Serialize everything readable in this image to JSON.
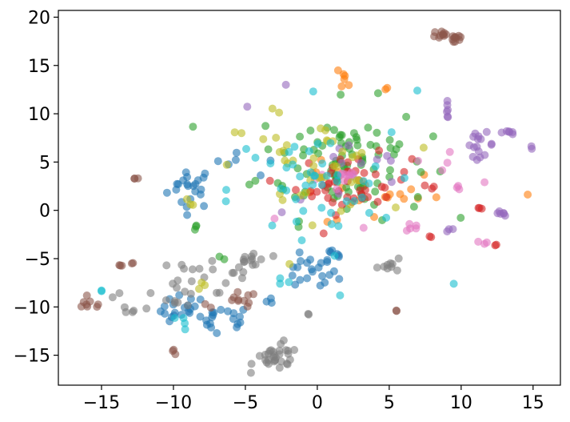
{
  "chart_data": {
    "type": "scatter",
    "title": "",
    "xlabel": "",
    "ylabel": "",
    "xlim": [
      -18,
      16.9
    ],
    "ylim": [
      -18.1,
      20.7
    ],
    "xticks": [
      -15,
      -10,
      -5,
      0,
      5,
      10,
      15
    ],
    "yticks": [
      -15,
      -10,
      -5,
      0,
      5,
      10,
      15,
      20
    ],
    "xtick_labels": [
      "−15",
      "−10",
      "−5",
      "0",
      "5",
      "10",
      "15"
    ],
    "ytick_labels": [
      "−15",
      "−10",
      "−5",
      "0",
      "5",
      "10",
      "15",
      "20"
    ],
    "grid": false,
    "legend": false,
    "marker_opacity": 0.6,
    "series": [
      {
        "color": "#1f77b4",
        "clusters": [
          {
            "cx": -8.8,
            "cy": 2.4,
            "sx": 0.8,
            "sy": 1.1,
            "n": 22
          },
          {
            "cx": -9.3,
            "cy": -10.4,
            "sx": 0.8,
            "sy": 0.8,
            "n": 20
          },
          {
            "cx": -7.2,
            "cy": -11.3,
            "sx": 0.3,
            "sy": 0.7,
            "n": 10
          },
          {
            "cx": -5.6,
            "cy": -11.2,
            "sx": 0.3,
            "sy": 0.6,
            "n": 8
          },
          {
            "cx": -0.6,
            "cy": -6.6,
            "sx": 1.0,
            "sy": 0.9,
            "n": 20
          },
          {
            "cx": 0.9,
            "cy": -4.6,
            "sx": 0.5,
            "sy": 0.6,
            "n": 8
          },
          {
            "cx": -5.5,
            "cy": 4.3,
            "sx": 1.5,
            "sy": 1.0,
            "n": 6
          },
          {
            "cx": -3.0,
            "cy": -9.5,
            "sx": 0.3,
            "sy": 0.2,
            "n": 3
          }
        ]
      },
      {
        "color": "#ff7f0e",
        "clusters": [
          {
            "cx": 1.8,
            "cy": 13.4,
            "sx": 0.3,
            "sy": 0.5,
            "n": 6
          },
          {
            "cx": 4.8,
            "cy": 12.6,
            "sx": 0.05,
            "sy": 0.1,
            "n": 2
          },
          {
            "cx": 14.6,
            "cy": 1.7,
            "sx": 0.05,
            "sy": 0.05,
            "n": 1
          },
          {
            "cx": 4.5,
            "cy": 1.8,
            "sx": 2.0,
            "sy": 2.0,
            "n": 18
          },
          {
            "cx": -2.0,
            "cy": 3.0,
            "sx": 1.5,
            "sy": 1.5,
            "n": 3
          }
        ]
      },
      {
        "color": "#2ca02c",
        "clusters": [
          {
            "cx": 1.8,
            "cy": 5.2,
            "sx": 3.0,
            "sy": 3.0,
            "n": 95
          },
          {
            "cx": -7.3,
            "cy": -5.0,
            "sx": 0.3,
            "sy": 0.2,
            "n": 2
          },
          {
            "cx": -8.5,
            "cy": -2.0,
            "sx": 0.4,
            "sy": 0.5,
            "n": 3
          }
        ]
      },
      {
        "color": "#d62728",
        "clusters": [
          {
            "cx": 2.5,
            "cy": 2.7,
            "sx": 2.0,
            "sy": 1.5,
            "n": 45
          },
          {
            "cx": 11.3,
            "cy": 0.2,
            "sx": 0.1,
            "sy": 0.1,
            "n": 3
          },
          {
            "cx": 12.4,
            "cy": -3.6,
            "sx": 0.05,
            "sy": 0.1,
            "n": 2
          },
          {
            "cx": 7.9,
            "cy": -2.4,
            "sx": 0.2,
            "sy": 0.3,
            "n": 2
          },
          {
            "cx": 8.0,
            "cy": 2.2,
            "sx": 0.3,
            "sy": 0.3,
            "n": 3
          }
        ]
      },
      {
        "color": "#9467bd",
        "clusters": [
          {
            "cx": 11.3,
            "cy": 6.8,
            "sx": 0.5,
            "sy": 0.6,
            "n": 16
          },
          {
            "cx": 13.3,
            "cy": 8.1,
            "sx": 0.3,
            "sy": 0.15,
            "n": 6
          },
          {
            "cx": 9.0,
            "cy": 10.4,
            "sx": 0.15,
            "sy": 0.4,
            "n": 6
          },
          {
            "cx": 12.5,
            "cy": -0.3,
            "sx": 0.25,
            "sy": 0.1,
            "n": 6
          },
          {
            "cx": 15.0,
            "cy": 6.5,
            "sx": 0.1,
            "sy": 0.1,
            "n": 2
          },
          {
            "cx": 9.3,
            "cy": -2.0,
            "sx": 0.2,
            "sy": 0.1,
            "n": 3
          },
          {
            "cx": -4.9,
            "cy": 10.7,
            "sx": 0.05,
            "sy": 0.05,
            "n": 1
          },
          {
            "cx": -2.2,
            "cy": 12.9,
            "sx": 0.05,
            "sy": 0.05,
            "n": 1
          },
          {
            "cx": 2.5,
            "cy": 3.5,
            "sx": 2.5,
            "sy": 2.0,
            "n": 14
          }
        ]
      },
      {
        "color": "#8c564b",
        "clusters": [
          {
            "cx": 8.6,
            "cy": 18.2,
            "sx": 0.3,
            "sy": 0.3,
            "n": 10
          },
          {
            "cx": 9.6,
            "cy": 17.9,
            "sx": 0.3,
            "sy": 0.4,
            "n": 10
          },
          {
            "cx": -12.5,
            "cy": 3.3,
            "sx": 0.1,
            "sy": 0.15,
            "n": 3
          },
          {
            "cx": -13.7,
            "cy": -5.7,
            "sx": 0.1,
            "sy": 0.05,
            "n": 3
          },
          {
            "cx": -12.8,
            "cy": -5.4,
            "sx": 0.1,
            "sy": 0.1,
            "n": 2
          },
          {
            "cx": -15.8,
            "cy": -9.8,
            "sx": 0.5,
            "sy": 0.3,
            "n": 8
          },
          {
            "cx": -9.9,
            "cy": -14.6,
            "sx": 0.2,
            "sy": 0.2,
            "n": 3
          },
          {
            "cx": -5.4,
            "cy": -9.3,
            "sx": 0.6,
            "sy": 0.4,
            "n": 10
          },
          {
            "cx": -7.6,
            "cy": -10.0,
            "sx": 0.2,
            "sy": 0.2,
            "n": 2
          },
          {
            "cx": 5.5,
            "cy": -10.4,
            "sx": 0.1,
            "sy": 0.05,
            "n": 2
          }
        ]
      },
      {
        "color": "#e377c2",
        "clusters": [
          {
            "cx": 1.9,
            "cy": 3.4,
            "sx": 0.4,
            "sy": 0.4,
            "n": 8
          },
          {
            "cx": 6.6,
            "cy": -1.8,
            "sx": 0.4,
            "sy": 0.2,
            "n": 5
          },
          {
            "cx": 11.6,
            "cy": -3.4,
            "sx": 0.3,
            "sy": 0.1,
            "n": 3
          },
          {
            "cx": 11.7,
            "cy": 2.9,
            "sx": 0.05,
            "sy": 0.05,
            "n": 1
          },
          {
            "cx": 9.7,
            "cy": 2.3,
            "sx": 0.2,
            "sy": 0.5,
            "n": 3
          },
          {
            "cx": 7.8,
            "cy": 4.5,
            "sx": 1.0,
            "sy": 1.0,
            "n": 4
          },
          {
            "cx": 1.0,
            "cy": 0.5,
            "sx": 1.5,
            "sy": 1.5,
            "n": 5
          }
        ]
      },
      {
        "color": "#7f7f7f",
        "clusters": [
          {
            "cx": -2.8,
            "cy": -15.3,
            "sx": 0.8,
            "sy": 0.6,
            "n": 30
          },
          {
            "cx": -4.5,
            "cy": -5.2,
            "sx": 0.6,
            "sy": 0.7,
            "n": 14
          },
          {
            "cx": -8.2,
            "cy": -6.2,
            "sx": 0.8,
            "sy": 0.5,
            "n": 8
          },
          {
            "cx": -12.8,
            "cy": -9.7,
            "sx": 0.6,
            "sy": 0.6,
            "n": 5
          },
          {
            "cx": -9.8,
            "cy": -8.4,
            "sx": 0.8,
            "sy": 0.8,
            "n": 12
          },
          {
            "cx": 5.3,
            "cy": -5.7,
            "sx": 0.6,
            "sy": 0.3,
            "n": 9
          },
          {
            "cx": -6.0,
            "cy": -7.3,
            "sx": 0.6,
            "sy": 0.6,
            "n": 6
          },
          {
            "cx": -0.6,
            "cy": -10.8,
            "sx": 0.05,
            "sy": 0.05,
            "n": 2
          },
          {
            "cx": -2.3,
            "cy": -13.5,
            "sx": 0.05,
            "sy": 0.05,
            "n": 1
          },
          {
            "cx": -13.8,
            "cy": -8.6,
            "sx": 0.3,
            "sy": 0.3,
            "n": 2
          }
        ]
      },
      {
        "color": "#bcbd22",
        "clusters": [
          {
            "cx": -0.5,
            "cy": 4.5,
            "sx": 2.5,
            "sy": 2.5,
            "n": 40
          },
          {
            "cx": -8.9,
            "cy": 0.7,
            "sx": 0.3,
            "sy": 0.3,
            "n": 3
          },
          {
            "cx": -8.0,
            "cy": -8.0,
            "sx": 0.3,
            "sy": 0.3,
            "n": 3
          },
          {
            "cx": -3.0,
            "cy": 10.7,
            "sx": 0.1,
            "sy": 0.1,
            "n": 1
          },
          {
            "cx": -5.6,
            "cy": 8.1,
            "sx": 0.2,
            "sy": 0.1,
            "n": 2
          }
        ]
      },
      {
        "color": "#17becf",
        "clusters": [
          {
            "cx": -0.5,
            "cy": 2.0,
            "sx": 2.8,
            "sy": 3.0,
            "n": 45
          },
          {
            "cx": -9.4,
            "cy": -11.6,
            "sx": 0.3,
            "sy": 0.4,
            "n": 4
          },
          {
            "cx": 9.5,
            "cy": -7.6,
            "sx": 0.05,
            "sy": 0.05,
            "n": 1
          },
          {
            "cx": -15.0,
            "cy": -8.4,
            "sx": 0.05,
            "sy": 0.1,
            "n": 2
          },
          {
            "cx": 7.0,
            "cy": 12.4,
            "sx": 0.05,
            "sy": 0.05,
            "n": 1
          },
          {
            "cx": -0.3,
            "cy": 12.3,
            "sx": 0.05,
            "sy": 0.05,
            "n": 1
          },
          {
            "cx": 1.6,
            "cy": -8.8,
            "sx": 0.05,
            "sy": 0.05,
            "n": 1
          },
          {
            "cx": -2.5,
            "cy": -7.3,
            "sx": 0.3,
            "sy": 0.3,
            "n": 3
          }
        ]
      }
    ]
  }
}
